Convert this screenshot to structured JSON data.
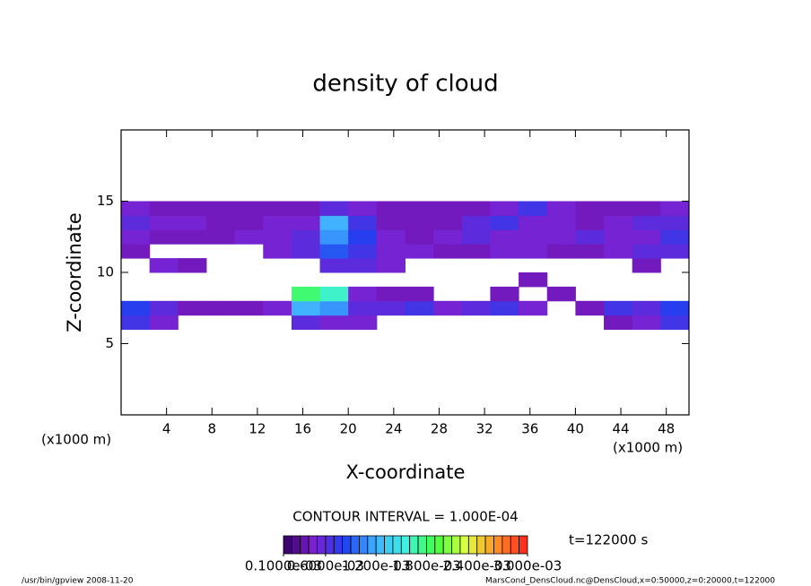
{
  "chart_data": {
    "type": "heatmap",
    "title": "density of cloud",
    "x_label": "X-coordinate",
    "y_label": "Z-coordinate",
    "x_unit": "(x1000 m)",
    "contour_interval": "CONTOUR INTERVAL = 1.000E-04",
    "time_label": "t=122000 s",
    "footer_left": "/usr/bin/gpview   2008-11-20",
    "footer_right": "MarsCond_DensCloud.nc@DensCloud,x=0:50000,z=0:20000,t=122000",
    "xlim": [
      0,
      50
    ],
    "ylim": [
      0,
      20
    ],
    "xticks": [
      4,
      8,
      12,
      16,
      20,
      24,
      28,
      32,
      36,
      40,
      44,
      48
    ],
    "yticks": [
      5,
      10,
      15
    ],
    "x": [
      1.25,
      3.75,
      6.25,
      8.75,
      11.25,
      13.75,
      16.25,
      18.75,
      21.25,
      23.75,
      26.25,
      28.75,
      31.25,
      33.75,
      36.25,
      38.75,
      41.25,
      43.75,
      46.25,
      48.75
    ],
    "y": [
      6.5,
      7.5,
      8.5,
      9.5,
      10.5,
      11.5,
      12.5,
      13.5,
      14.5
    ],
    "values": [
      [
        0.0007,
        0.0005,
        null,
        null,
        null,
        null,
        0.0006,
        0.0005,
        0.0005,
        null,
        null,
        null,
        null,
        null,
        null,
        null,
        null,
        0.0004,
        0.0005,
        0.0007
      ],
      [
        0.0008,
        0.0006,
        0.0004,
        0.0004,
        0.0004,
        0.0005,
        0.0012,
        0.0011,
        0.0006,
        0.0006,
        0.0007,
        0.0005,
        0.0006,
        0.0007,
        0.0005,
        null,
        0.0004,
        0.0007,
        0.0006,
        0.0008
      ],
      [
        null,
        null,
        null,
        null,
        null,
        null,
        0.0018,
        0.0016,
        0.0005,
        0.0004,
        0.0004,
        null,
        null,
        0.0004,
        null,
        0.0004,
        null,
        null,
        null,
        null
      ],
      [
        null,
        null,
        null,
        null,
        null,
        null,
        null,
        null,
        null,
        null,
        null,
        null,
        null,
        null,
        0.0004,
        null,
        null,
        null,
        null,
        null
      ],
      [
        null,
        0.0005,
        0.0004,
        null,
        null,
        null,
        null,
        0.0006,
        0.0006,
        0.0005,
        null,
        null,
        null,
        null,
        null,
        null,
        null,
        null,
        0.0004,
        null
      ],
      [
        0.0004,
        null,
        null,
        null,
        null,
        0.0005,
        0.0006,
        0.0009,
        0.0007,
        0.0005,
        0.0005,
        0.0004,
        0.0004,
        0.0005,
        0.0005,
        0.0004,
        0.0004,
        0.0005,
        0.0006,
        0.0006
      ],
      [
        0.0005,
        0.0004,
        0.0004,
        0.0004,
        0.0005,
        0.0005,
        0.0006,
        0.0011,
        0.0008,
        0.0005,
        0.0004,
        0.0005,
        0.0006,
        0.0005,
        0.0005,
        0.0005,
        0.0006,
        0.0005,
        0.0005,
        0.0007
      ],
      [
        0.0006,
        0.0005,
        0.0005,
        0.0004,
        0.0004,
        0.0005,
        0.0005,
        0.0012,
        0.0007,
        0.0004,
        0.0004,
        0.0004,
        0.0006,
        0.0007,
        0.0005,
        0.0005,
        0.0004,
        0.0005,
        0.0006,
        0.0006
      ],
      [
        0.0005,
        0.0004,
        0.0004,
        0.0004,
        0.0004,
        0.0004,
        0.0004,
        0.0006,
        0.0005,
        0.0004,
        0.0004,
        0.0004,
        0.0004,
        0.0005,
        0.0007,
        0.0005,
        0.0004,
        0.0004,
        0.0004,
        0.0005
      ]
    ],
    "clim": [
      0.0001,
      0.003
    ],
    "colormap": [
      "#300060",
      "#8020d0",
      "#2040f0",
      "#40b0ff",
      "#40f0e0",
      "#40ff40",
      "#e0ff40",
      "#ff9020",
      "#ff2020"
    ],
    "colorbar_ticks": [
      {
        "value": 0.0001,
        "label": "0.1000e-03"
      },
      {
        "value": 0.0006,
        "label": "0.6000e-03"
      },
      {
        "value": 0.0012,
        "label": "1.200e-03"
      },
      {
        "value": 0.0018,
        "label": "1.800e-03"
      },
      {
        "value": 0.0024,
        "label": "2.400e-03"
      },
      {
        "value": 0.003,
        "label": "3.000e-03"
      }
    ]
  }
}
